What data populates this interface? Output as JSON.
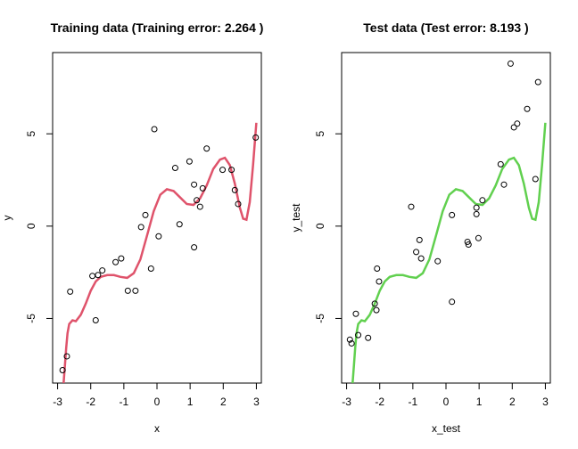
{
  "chart_data": [
    {
      "type": "scatter",
      "title": "Training data (Training error: 2.264 )",
      "xlabel": "x",
      "ylabel": "y",
      "xlim": [
        -3.15,
        3.15
      ],
      "ylim": [
        -8.5,
        9.4
      ],
      "xticks": [
        "-3",
        "-2",
        "-1",
        "0",
        "1",
        "2",
        "3"
      ],
      "yticks": [
        "-5",
        "0",
        "5"
      ],
      "grid": false,
      "fit_color": "#DF536B",
      "points": [
        [
          -2.85,
          -7.8
        ],
        [
          -2.72,
          -7.05
        ],
        [
          -2.62,
          -3.55
        ],
        [
          -1.95,
          -2.7
        ],
        [
          -1.85,
          -5.1
        ],
        [
          -1.78,
          -2.65
        ],
        [
          -1.65,
          -2.4
        ],
        [
          -1.25,
          -1.95
        ],
        [
          -1.08,
          -1.75
        ],
        [
          -0.88,
          -3.5
        ],
        [
          -0.65,
          -3.5
        ],
        [
          -0.48,
          -0.05
        ],
        [
          -0.35,
          0.6
        ],
        [
          -0.18,
          -2.3
        ],
        [
          -0.08,
          5.25
        ],
        [
          0.05,
          -0.55
        ],
        [
          0.55,
          3.15
        ],
        [
          0.68,
          0.1
        ],
        [
          0.98,
          3.5
        ],
        [
          1.12,
          2.25
        ],
        [
          1.12,
          -1.15
        ],
        [
          1.2,
          1.4
        ],
        [
          1.3,
          1.05
        ],
        [
          1.38,
          2.05
        ],
        [
          1.5,
          4.2
        ],
        [
          1.98,
          3.05
        ],
        [
          2.25,
          3.05
        ],
        [
          2.35,
          1.95
        ],
        [
          2.45,
          1.2
        ],
        [
          2.98,
          4.8
        ]
      ],
      "fit": [
        [
          -2.82,
          -8.5
        ],
        [
          -2.78,
          -7.6
        ],
        [
          -2.74,
          -6.6
        ],
        [
          -2.7,
          -5.8
        ],
        [
          -2.65,
          -5.3
        ],
        [
          -2.55,
          -5.1
        ],
        [
          -2.45,
          -5.15
        ],
        [
          -2.3,
          -4.8
        ],
        [
          -2.15,
          -4.2
        ],
        [
          -2.0,
          -3.5
        ],
        [
          -1.85,
          -3.0
        ],
        [
          -1.7,
          -2.75
        ],
        [
          -1.5,
          -2.65
        ],
        [
          -1.3,
          -2.65
        ],
        [
          -1.1,
          -2.75
        ],
        [
          -0.9,
          -2.8
        ],
        [
          -0.7,
          -2.55
        ],
        [
          -0.5,
          -1.8
        ],
        [
          -0.3,
          -0.5
        ],
        [
          -0.1,
          0.8
        ],
        [
          0.1,
          1.7
        ],
        [
          0.3,
          2.0
        ],
        [
          0.5,
          1.9
        ],
        [
          0.7,
          1.55
        ],
        [
          0.9,
          1.2
        ],
        [
          1.1,
          1.15
        ],
        [
          1.3,
          1.5
        ],
        [
          1.5,
          2.2
        ],
        [
          1.7,
          3.1
        ],
        [
          1.9,
          3.6
        ],
        [
          2.05,
          3.7
        ],
        [
          2.2,
          3.3
        ],
        [
          2.35,
          2.3
        ],
        [
          2.5,
          1.0
        ],
        [
          2.6,
          0.4
        ],
        [
          2.7,
          0.35
        ],
        [
          2.8,
          1.3
        ],
        [
          2.9,
          3.3
        ],
        [
          3.0,
          5.6
        ]
      ]
    },
    {
      "type": "scatter",
      "title": "Test data (Test error: 8.193 )",
      "xlabel": "x_test",
      "ylabel": "y_test",
      "xlim": [
        -3.15,
        3.15
      ],
      "ylim": [
        -8.5,
        9.4
      ],
      "xticks": [
        "-3",
        "-2",
        "-1",
        "0",
        "1",
        "2",
        "3"
      ],
      "yticks": [
        "-5",
        "0",
        "5"
      ],
      "grid": false,
      "fit_color": "#61D04F",
      "points": [
        [
          -2.9,
          -6.15
        ],
        [
          -2.85,
          -6.35
        ],
        [
          -2.72,
          -4.75
        ],
        [
          -2.65,
          -5.9
        ],
        [
          -2.35,
          -6.05
        ],
        [
          -2.15,
          -4.2
        ],
        [
          -2.1,
          -4.55
        ],
        [
          -2.08,
          -2.3
        ],
        [
          -2.02,
          -3.0
        ],
        [
          -1.05,
          1.05
        ],
        [
          -0.9,
          -1.4
        ],
        [
          -0.8,
          -0.75
        ],
        [
          -0.75,
          -1.75
        ],
        [
          -0.25,
          -1.9
        ],
        [
          0.18,
          0.6
        ],
        [
          0.18,
          -4.1
        ],
        [
          0.65,
          -0.85
        ],
        [
          0.68,
          -1.0
        ],
        [
          0.92,
          0.65
        ],
        [
          0.92,
          1.0
        ],
        [
          0.98,
          -0.65
        ],
        [
          1.1,
          1.4
        ],
        [
          1.65,
          3.35
        ],
        [
          1.75,
          2.25
        ],
        [
          1.95,
          8.8
        ],
        [
          2.05,
          5.35
        ],
        [
          2.15,
          5.55
        ],
        [
          2.45,
          6.35
        ],
        [
          2.7,
          2.55
        ],
        [
          2.78,
          7.8
        ]
      ],
      "fit": [
        [
          -2.82,
          -8.5
        ],
        [
          -2.78,
          -7.6
        ],
        [
          -2.74,
          -6.6
        ],
        [
          -2.7,
          -5.8
        ],
        [
          -2.65,
          -5.3
        ],
        [
          -2.55,
          -5.1
        ],
        [
          -2.45,
          -5.15
        ],
        [
          -2.3,
          -4.8
        ],
        [
          -2.15,
          -4.2
        ],
        [
          -2.0,
          -3.5
        ],
        [
          -1.85,
          -3.0
        ],
        [
          -1.7,
          -2.75
        ],
        [
          -1.5,
          -2.65
        ],
        [
          -1.3,
          -2.65
        ],
        [
          -1.1,
          -2.75
        ],
        [
          -0.9,
          -2.8
        ],
        [
          -0.7,
          -2.55
        ],
        [
          -0.5,
          -1.8
        ],
        [
          -0.3,
          -0.5
        ],
        [
          -0.1,
          0.8
        ],
        [
          0.1,
          1.7
        ],
        [
          0.3,
          2.0
        ],
        [
          0.5,
          1.9
        ],
        [
          0.7,
          1.55
        ],
        [
          0.9,
          1.2
        ],
        [
          1.1,
          1.15
        ],
        [
          1.3,
          1.5
        ],
        [
          1.5,
          2.2
        ],
        [
          1.7,
          3.1
        ],
        [
          1.9,
          3.6
        ],
        [
          2.05,
          3.7
        ],
        [
          2.2,
          3.3
        ],
        [
          2.35,
          2.3
        ],
        [
          2.5,
          1.0
        ],
        [
          2.6,
          0.4
        ],
        [
          2.7,
          0.35
        ],
        [
          2.8,
          1.3
        ],
        [
          2.9,
          3.3
        ],
        [
          3.0,
          5.6
        ]
      ]
    }
  ]
}
